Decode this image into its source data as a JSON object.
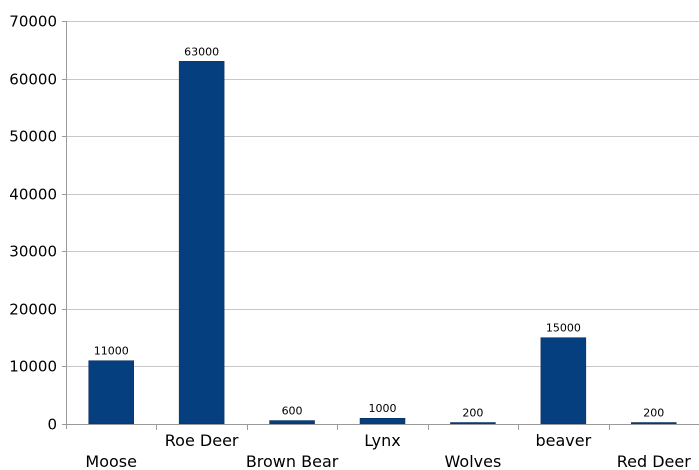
{
  "chart_data": {
    "type": "bar",
    "title": "",
    "xlabel": "",
    "ylabel": "",
    "categories": [
      "Moose",
      "Roe Deer",
      "Brown Bear",
      "Lynx",
      "Wolves",
      "beaver",
      "Red Deer"
    ],
    "values": [
      11000,
      63000,
      600,
      1000,
      200,
      15000,
      200
    ],
    "data_labels": [
      "11000",
      "63000",
      "600",
      "1000",
      "200",
      "15000",
      "200"
    ],
    "ylim": [
      0,
      70000
    ],
    "yticks": [
      0,
      10000,
      20000,
      30000,
      40000,
      50000,
      60000,
      70000
    ],
    "ytick_labels": [
      "0",
      "10000",
      "20000",
      "30000",
      "40000",
      "50000",
      "60000",
      "70000"
    ],
    "grid": true,
    "legend": "none",
    "bar_color": "#063f7f"
  }
}
